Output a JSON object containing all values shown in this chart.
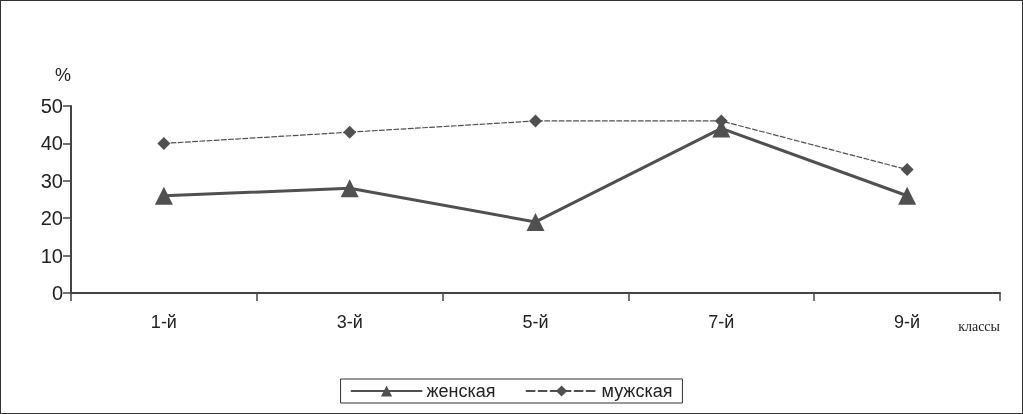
{
  "chart_data": {
    "type": "line",
    "ylabel": "%",
    "xlabel": "классы",
    "categories": [
      "1-й",
      "3-й",
      "5-й",
      "7-й",
      "9-й"
    ],
    "series": [
      {
        "name": "женская",
        "color": "#505050",
        "values": [
          26,
          28,
          19,
          44,
          26
        ],
        "marker": "triangle",
        "line_style": "solid"
      },
      {
        "name": "мужская",
        "color": "#505050",
        "values": [
          40,
          43,
          46,
          46,
          33
        ],
        "marker": "diamond",
        "line_style": "dashed"
      }
    ],
    "ylim": [
      0,
      50
    ],
    "yticks": [
      0,
      10,
      20,
      30,
      40,
      50
    ],
    "grid": false,
    "legend": "bottom"
  }
}
